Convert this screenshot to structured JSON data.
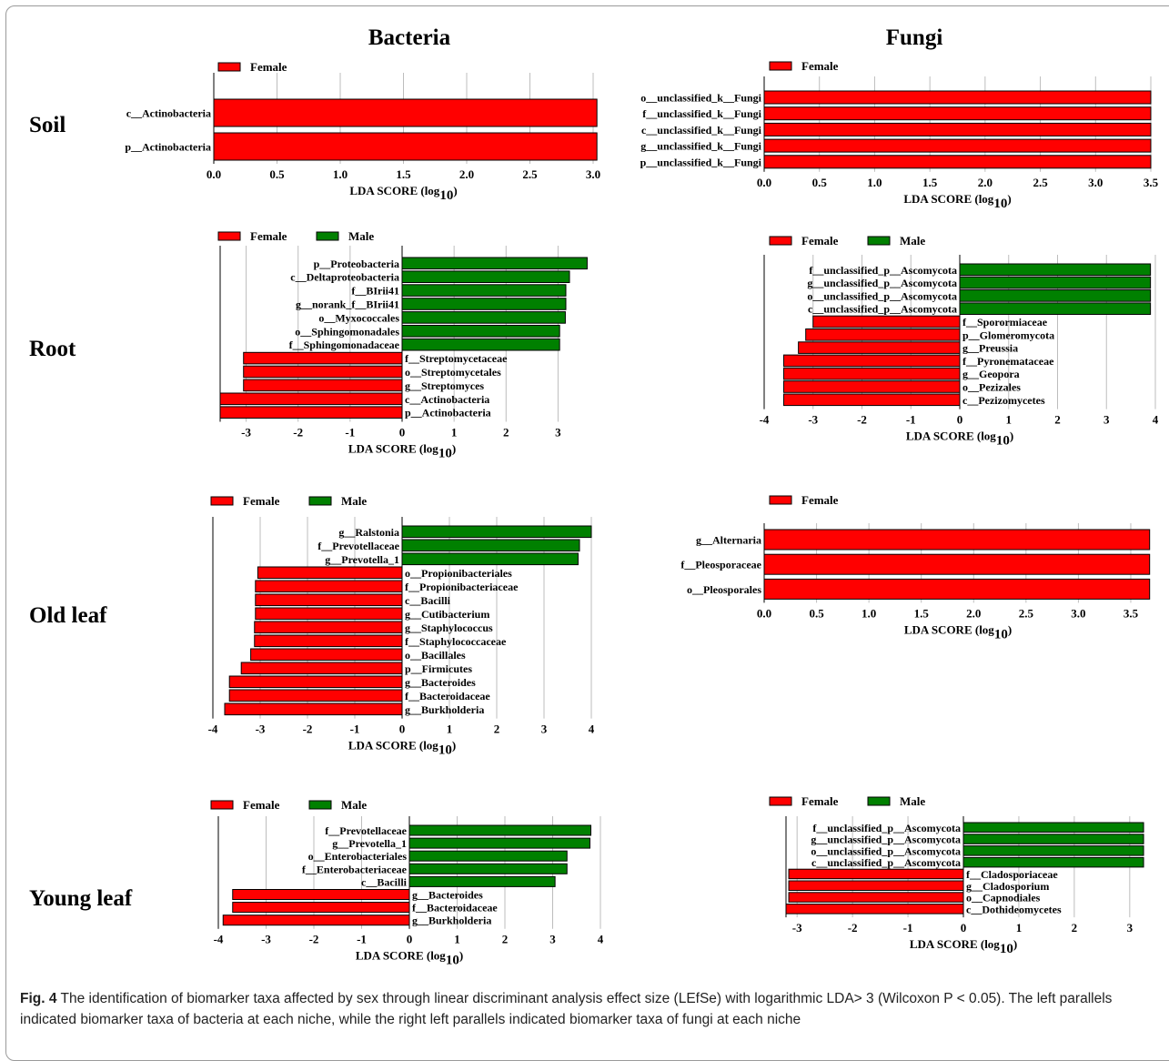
{
  "headers": {
    "bacteria": "Bacteria",
    "fungi": "Fungi"
  },
  "rows": [
    "Soil",
    "Root",
    "Old leaf",
    "Young leaf"
  ],
  "caption": {
    "label": "Fig. 4",
    "text": "The identification of biomarker taxa affected by sex through linear discriminant analysis effect size (LEfSe) with logarithmic LDA> 3 (Wilcoxon P < 0.05). The left parallels indicated biomarker taxa of bacteria at each niche, while the right left parallels indicated biomarker taxa of fungi at each niche"
  },
  "colors": {
    "female": "#ff0000",
    "male": "#008000",
    "edge": "#000000",
    "grid": "#bdbdbd"
  },
  "chart_data": [
    {
      "id": "soil-bacteria",
      "type": "bar",
      "orientation": "horizontal",
      "xlabel": "LDA SCORE (log10)",
      "xlim": [
        0,
        3.0
      ],
      "xticks": [
        0,
        0.5,
        1,
        1.5,
        2,
        2.5,
        3
      ],
      "legend": [
        "Female"
      ],
      "bars": [
        {
          "label": "c__Actinobacteria",
          "value": 3.03,
          "group": "Female"
        },
        {
          "label": "p__Actinobacteria",
          "value": 3.03,
          "group": "Female"
        }
      ]
    },
    {
      "id": "soil-fungi",
      "type": "bar",
      "orientation": "horizontal",
      "xlabel": "LDA SCORE (log10)",
      "xlim": [
        0,
        3.5
      ],
      "xticks": [
        0,
        0.5,
        1,
        1.5,
        2,
        2.5,
        3,
        3.5
      ],
      "legend": [
        "Female"
      ],
      "bars": [
        {
          "label": "o__unclassified_k__Fungi",
          "value": 3.5,
          "group": "Female"
        },
        {
          "label": "f__unclassified_k__Fungi",
          "value": 3.5,
          "group": "Female"
        },
        {
          "label": "c__unclassified_k__Fungi",
          "value": 3.5,
          "group": "Female"
        },
        {
          "label": "g__unclassified_k__Fungi",
          "value": 3.5,
          "group": "Female"
        },
        {
          "label": "p__unclassified_k__Fungi",
          "value": 3.5,
          "group": "Female"
        }
      ]
    },
    {
      "id": "root-bacteria",
      "type": "bar",
      "orientation": "horizontal",
      "xlabel": "LDA SCORE (log10)",
      "xlim": [
        -3.5,
        3.5
      ],
      "xticks": [
        -3,
        -2,
        -1,
        0,
        1,
        2,
        3
      ],
      "legend": [
        "Female",
        "Male"
      ],
      "bars": [
        {
          "label": "p__Proteobacteria",
          "value": 3.56,
          "group": "Male"
        },
        {
          "label": "c__Deltaproteobacteria",
          "value": 3.22,
          "group": "Male"
        },
        {
          "label": "f__BIrii41",
          "value": 3.15,
          "group": "Male"
        },
        {
          "label": "g__norank_f__BIrii41",
          "value": 3.15,
          "group": "Male"
        },
        {
          "label": "o__Myxococcales",
          "value": 3.14,
          "group": "Male"
        },
        {
          "label": "o__Sphingomonadales",
          "value": 3.03,
          "group": "Male"
        },
        {
          "label": "f__Sphingomonadaceae",
          "value": 3.03,
          "group": "Male"
        },
        {
          "label": "f__Streptomycetaceae",
          "value": -3.05,
          "group": "Female"
        },
        {
          "label": "o__Streptomycetales",
          "value": -3.05,
          "group": "Female"
        },
        {
          "label": "g__Streptomyces",
          "value": -3.05,
          "group": "Female"
        },
        {
          "label": "c__Actinobacteria",
          "value": -3.5,
          "group": "Female"
        },
        {
          "label": "p__Actinobacteria",
          "value": -3.5,
          "group": "Female"
        }
      ]
    },
    {
      "id": "root-fungi",
      "type": "bar",
      "orientation": "horizontal",
      "xlabel": "LDA SCORE (log10)",
      "xlim": [
        -4,
        4
      ],
      "xticks": [
        -4,
        -3,
        -2,
        -1,
        0,
        1,
        2,
        3,
        4
      ],
      "legend": [
        "Female",
        "Male"
      ],
      "bars": [
        {
          "label": "f__unclassified_p__Ascomycota",
          "value": 3.9,
          "group": "Male"
        },
        {
          "label": "g__unclassified_p__Ascomycota",
          "value": 3.9,
          "group": "Male"
        },
        {
          "label": "o__unclassified_p__Ascomycota",
          "value": 3.9,
          "group": "Male"
        },
        {
          "label": "c__unclassified_p__Ascomycota",
          "value": 3.9,
          "group": "Male"
        },
        {
          "label": "f__Sporormiaceae",
          "value": -3.0,
          "group": "Female"
        },
        {
          "label": "p__Glomeromycota",
          "value": -3.15,
          "group": "Female"
        },
        {
          "label": "g__Preussia",
          "value": -3.3,
          "group": "Female"
        },
        {
          "label": "f__Pyronemataceae",
          "value": -3.6,
          "group": "Female"
        },
        {
          "label": "g__Geopora",
          "value": -3.6,
          "group": "Female"
        },
        {
          "label": "o__Pezizales",
          "value": -3.6,
          "group": "Female"
        },
        {
          "label": "c__Pezizomycetes",
          "value": -3.6,
          "group": "Female"
        }
      ]
    },
    {
      "id": "oldleaf-bacteria",
      "type": "bar",
      "orientation": "horizontal",
      "xlabel": "LDA SCORE (log10)",
      "xlim": [
        -4,
        4
      ],
      "xticks": [
        -4,
        -3,
        -2,
        -1,
        0,
        1,
        2,
        3,
        4
      ],
      "legend": [
        "Female",
        "Male"
      ],
      "bars": [
        {
          "label": "g__Ralstonia",
          "value": 4.0,
          "group": "Male"
        },
        {
          "label": "f__Prevotellaceae",
          "value": 3.75,
          "group": "Male"
        },
        {
          "label": "g__Prevotella_1",
          "value": 3.72,
          "group": "Male"
        },
        {
          "label": "o__Propionibacteriales",
          "value": -3.05,
          "group": "Female"
        },
        {
          "label": "f__Propionibacteriaceae",
          "value": -3.1,
          "group": "Female"
        },
        {
          "label": "c__Bacilli",
          "value": -3.1,
          "group": "Female"
        },
        {
          "label": "g__Cutibacterium",
          "value": -3.1,
          "group": "Female"
        },
        {
          "label": "g__Staphylococcus",
          "value": -3.12,
          "group": "Female"
        },
        {
          "label": "f__Staphylococcaceae",
          "value": -3.12,
          "group": "Female"
        },
        {
          "label": "o__Bacillales",
          "value": -3.2,
          "group": "Female"
        },
        {
          "label": "p__Firmicutes",
          "value": -3.4,
          "group": "Female"
        },
        {
          "label": "g__Bacteroides",
          "value": -3.65,
          "group": "Female"
        },
        {
          "label": "f__Bacteroidaceae",
          "value": -3.65,
          "group": "Female"
        },
        {
          "label": "g__Burkholderia",
          "value": -3.75,
          "group": "Female"
        }
      ]
    },
    {
      "id": "oldleaf-fungi",
      "type": "bar",
      "orientation": "horizontal",
      "xlabel": "LDA SCORE (log10)",
      "xlim": [
        0,
        3.7
      ],
      "xticks": [
        0,
        0.5,
        1,
        1.5,
        2,
        2.5,
        3,
        3.5
      ],
      "legend": [
        "Female"
      ],
      "bars": [
        {
          "label": "g__Alternaria",
          "value": 3.68,
          "group": "Female"
        },
        {
          "label": "f__Pleosporaceae",
          "value": 3.68,
          "group": "Female"
        },
        {
          "label": "o__Pleosporales",
          "value": 3.68,
          "group": "Female"
        }
      ]
    },
    {
      "id": "youngleaf-bacteria",
      "type": "bar",
      "orientation": "horizontal",
      "xlabel": "LDA SCORE (log10)",
      "xlim": [
        -4,
        4
      ],
      "xticks": [
        -4,
        -3,
        -2,
        -1,
        0,
        1,
        2,
        3,
        4
      ],
      "legend": [
        "Female",
        "Male"
      ],
      "bars": [
        {
          "label": "f__Prevotellaceae",
          "value": 3.8,
          "group": "Male"
        },
        {
          "label": "g__Prevotella_1",
          "value": 3.78,
          "group": "Male"
        },
        {
          "label": "o__Enterobacteriales",
          "value": 3.3,
          "group": "Male"
        },
        {
          "label": "f__Enterobacteriaceae",
          "value": 3.3,
          "group": "Male"
        },
        {
          "label": "c__Bacilli",
          "value": 3.05,
          "group": "Male"
        },
        {
          "label": "g__Bacteroides",
          "value": -3.7,
          "group": "Female"
        },
        {
          "label": "f__Bacteroidaceae",
          "value": -3.7,
          "group": "Female"
        },
        {
          "label": "g__Burkholderia",
          "value": -3.9,
          "group": "Female"
        }
      ]
    },
    {
      "id": "youngleaf-fungi",
      "type": "bar",
      "orientation": "horizontal",
      "xlabel": "LDA SCORE (log10)",
      "xlim": [
        -3.2,
        3.2
      ],
      "xticks": [
        -3,
        -2,
        -1,
        0,
        1,
        2,
        3
      ],
      "legend": [
        "Female",
        "Male"
      ],
      "bars": [
        {
          "label": "f__unclassified_p__Ascomycota",
          "value": 3.25,
          "group": "Male"
        },
        {
          "label": "g__unclassified_p__Ascomycota",
          "value": 3.25,
          "group": "Male"
        },
        {
          "label": "o__unclassified_p__Ascomycota",
          "value": 3.25,
          "group": "Male"
        },
        {
          "label": "c__unclassified_p__Ascomycota",
          "value": 3.25,
          "group": "Male"
        },
        {
          "label": "f__Cladosporiaceae",
          "value": -3.15,
          "group": "Female"
        },
        {
          "label": "g__Cladosporium",
          "value": -3.15,
          "group": "Female"
        },
        {
          "label": "o__Capnodiales",
          "value": -3.15,
          "group": "Female"
        },
        {
          "label": "c__Dothideomycetes",
          "value": -3.2,
          "group": "Female"
        }
      ]
    }
  ]
}
